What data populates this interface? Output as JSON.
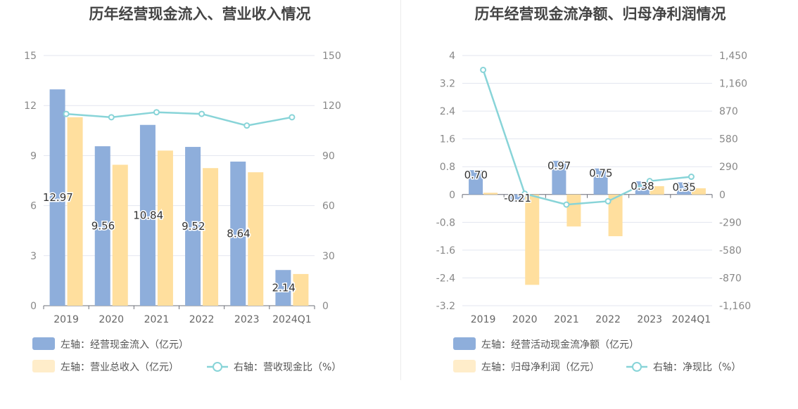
{
  "chart_data": [
    {
      "type": "bar",
      "title": "历年经营现金流入、营业收入情况",
      "categories": [
        "2019",
        "2020",
        "2021",
        "2022",
        "2023",
        "2024Q1"
      ],
      "left_axis": {
        "ylim": [
          0,
          15
        ],
        "ticks": [
          "0",
          "3",
          "6",
          "9",
          "12",
          "15"
        ]
      },
      "right_axis": {
        "ylim": [
          0,
          150
        ],
        "ticks": [
          "0",
          "30",
          "60",
          "90",
          "120",
          "150"
        ]
      },
      "series": [
        {
          "name": "左轴：经营现金流入（亿元）",
          "type": "bar",
          "axis": "left",
          "color": "#8eaedb",
          "values": [
            12.97,
            9.56,
            10.84,
            9.52,
            8.64,
            2.14
          ],
          "labels": [
            "12.97",
            "9.56",
            "10.84",
            "9.52",
            "8.64",
            "2.14"
          ]
        },
        {
          "name": "左轴：营业总收入（亿元）",
          "type": "bar",
          "axis": "left",
          "color": "#ffdf9e",
          "values": [
            11.3,
            8.45,
            9.3,
            8.25,
            8.0,
            1.9
          ]
        },
        {
          "name": "右轴：营收现金比（%）",
          "type": "line",
          "axis": "right",
          "color": "#88d4d8",
          "values": [
            115,
            113,
            116,
            115,
            108,
            113
          ]
        }
      ]
    },
    {
      "type": "bar",
      "title": "历年经营现金流净额、归母净利润情况",
      "categories": [
        "2019",
        "2020",
        "2021",
        "2022",
        "2023",
        "2024Q1"
      ],
      "left_axis": {
        "ylim": [
          -3.2,
          4
        ],
        "ticks": [
          "-3.2",
          "-2.4",
          "-1.6",
          "-0.8",
          "0",
          "0.8",
          "1.6",
          "2.4",
          "3.2",
          "4"
        ]
      },
      "right_axis": {
        "ylim": [
          -1160,
          1450
        ],
        "ticks": [
          "-1,160",
          "-870",
          "-580",
          "-290",
          "0",
          "290",
          "580",
          "870",
          "1,160",
          "1,450"
        ]
      },
      "series": [
        {
          "name": "左轴：经营活动现金流净额（亿元）",
          "type": "bar",
          "axis": "left",
          "color": "#8eaedb",
          "values": [
            0.7,
            -0.21,
            0.97,
            0.75,
            0.38,
            0.35
          ],
          "labels": [
            "0.70",
            "-0.21",
            "0.97",
            "0.75",
            "0.38",
            "0.35"
          ]
        },
        {
          "name": "左轴：归母净利润（亿元）",
          "type": "bar",
          "axis": "left",
          "color": "#ffdf9e",
          "values": [
            0.05,
            -2.6,
            -0.92,
            -1.2,
            0.24,
            0.18
          ]
        },
        {
          "name": "右轴：净现比（%）",
          "type": "line",
          "axis": "right",
          "color": "#88d4d8",
          "values": [
            1300,
            8,
            -105,
            -70,
            140,
            185
          ]
        }
      ]
    }
  ]
}
